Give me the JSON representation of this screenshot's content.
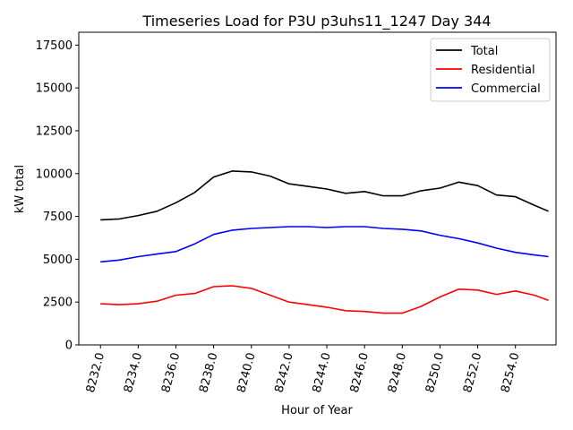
{
  "chart_data": {
    "type": "line",
    "title": "Timeseries Load for P3U p3uhs11_1247  Day 344",
    "xlabel": "Hour of Year",
    "ylabel": "kW total",
    "xlim": [
      8230.85,
      8256.15
    ],
    "ylim": [
      0,
      18250
    ],
    "xticks": [
      8232,
      8234,
      8236,
      8238,
      8240,
      8242,
      8244,
      8246,
      8248,
      8250,
      8252,
      8254
    ],
    "xtick_labels": [
      "8232.0",
      "8234.0",
      "8236.0",
      "8238.0",
      "8240.0",
      "8242.0",
      "8244.0",
      "8246.0",
      "8248.0",
      "8250.0",
      "8252.0",
      "8254.0"
    ],
    "yticks": [
      0,
      2500,
      5000,
      7500,
      10000,
      12500,
      15000,
      17500
    ],
    "ytick_labels": [
      "0",
      "2500",
      "5000",
      "7500",
      "10000",
      "12500",
      "15000",
      "17500"
    ],
    "legend_position": "top-right",
    "x": [
      8232,
      8233,
      8234,
      8235,
      8236,
      8237,
      8238,
      8239,
      8240,
      8241,
      8242,
      8243,
      8244,
      8245,
      8246,
      8247,
      8248,
      8249,
      8250,
      8251,
      8252,
      8253,
      8254,
      8255,
      8255.75
    ],
    "series": [
      {
        "name": "Total",
        "color": "#000000",
        "values": [
          7300,
          7350,
          7550,
          7800,
          8300,
          8900,
          9800,
          10150,
          10100,
          9850,
          9400,
          9250,
          9100,
          8850,
          8950,
          8700,
          8700,
          9000,
          9150,
          9500,
          9300,
          8750,
          8650,
          8150,
          7800
        ]
      },
      {
        "name": "Residential",
        "color": "#ff0000",
        "values": [
          2400,
          2350,
          2400,
          2550,
          2900,
          3000,
          3400,
          3450,
          3300,
          2900,
          2500,
          2350,
          2200,
          2000,
          1950,
          1850,
          1850,
          2250,
          2800,
          3250,
          3200,
          2950,
          3150,
          2900,
          2600
        ]
      },
      {
        "name": "Commercial",
        "color": "#0000ff",
        "values": [
          4850,
          4950,
          5150,
          5300,
          5450,
          5900,
          6450,
          6700,
          6800,
          6850,
          6900,
          6900,
          6850,
          6900,
          6900,
          6800,
          6750,
          6650,
          6400,
          6200,
          5950,
          5650,
          5400,
          5250,
          5150
        ]
      }
    ]
  }
}
